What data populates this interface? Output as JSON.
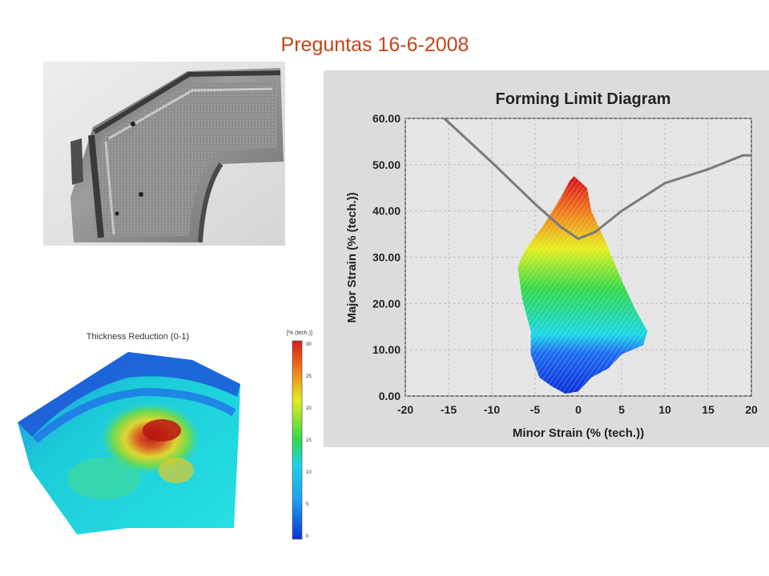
{
  "slide": {
    "title": "Preguntas 16-6-2008"
  },
  "colors": {
    "title": "#c0461a",
    "flc_line": "#7a7a7a",
    "panel_bg": "#dcdcdc"
  },
  "photo": {
    "icon": "stamped-sheet-metal-part-photo"
  },
  "chart_data": [
    {
      "type": "scatter",
      "title": "Forming Limit Diagram",
      "xlabel": "Minor Strain (% (tech.))",
      "ylabel": "Major Strain (% (tech.))",
      "xlim": [
        -20,
        20
      ],
      "ylim": [
        0,
        60
      ],
      "x_ticks": [
        "-20",
        "-15",
        "-10",
        "-5",
        "0",
        "5",
        "10",
        "15",
        "20"
      ],
      "y_ticks": [
        "0.00",
        "10.00",
        "20.00",
        "30.00",
        "40.00",
        "50.00",
        "60.00"
      ],
      "grid": true,
      "series": [
        {
          "kind": "line",
          "x": [
            -15.5,
            -10,
            -5,
            -2,
            0,
            2,
            5,
            10,
            15,
            19,
            20
          ],
          "y": [
            60,
            50.5,
            41.5,
            36.5,
            34,
            35.5,
            40,
            46,
            49,
            52,
            52
          ]
        },
        {
          "kind": "point-cloud",
          "outline": [
            [
              -0.5,
              47.5
            ],
            [
              1,
              45
            ],
            [
              1.5,
              40
            ],
            [
              3,
              34
            ],
            [
              5,
              25
            ],
            [
              6.5,
              19
            ],
            [
              8,
              14
            ],
            [
              7.5,
              11
            ],
            [
              5,
              9
            ],
            [
              3.5,
              6
            ],
            [
              1.5,
              4
            ],
            [
              0,
              1
            ],
            [
              -1.5,
              0.5
            ],
            [
              -3,
              2
            ],
            [
              -4.5,
              4
            ],
            [
              -5.5,
              9
            ],
            [
              -5.5,
              14
            ],
            [
              -6.5,
              21
            ],
            [
              -7,
              28
            ],
            [
              -6,
              32
            ],
            [
              -4,
              37
            ],
            [
              -2,
              43
            ],
            [
              -1,
              46.5
            ]
          ],
          "color_by": "major_strain",
          "color_stops": [
            {
              "y": 0,
              "color": "#0a2fd8"
            },
            {
              "y": 9,
              "color": "#1e6df0"
            },
            {
              "y": 13,
              "color": "#19d6e8"
            },
            {
              "y": 23,
              "color": "#2fd84a"
            },
            {
              "y": 32,
              "color": "#e6ee1d"
            },
            {
              "y": 40,
              "color": "#ef7d1c"
            },
            {
              "y": 47,
              "color": "#d91a1a"
            }
          ]
        }
      ]
    },
    {
      "type": "heatmap",
      "title": "Thickness Reduction  (0-1)",
      "colorbar": {
        "title": "[% (tech.)]",
        "ticks": [
          "30",
          "25",
          "20",
          "15",
          "10",
          "5",
          "0"
        ],
        "range": [
          0,
          30
        ]
      }
    }
  ]
}
